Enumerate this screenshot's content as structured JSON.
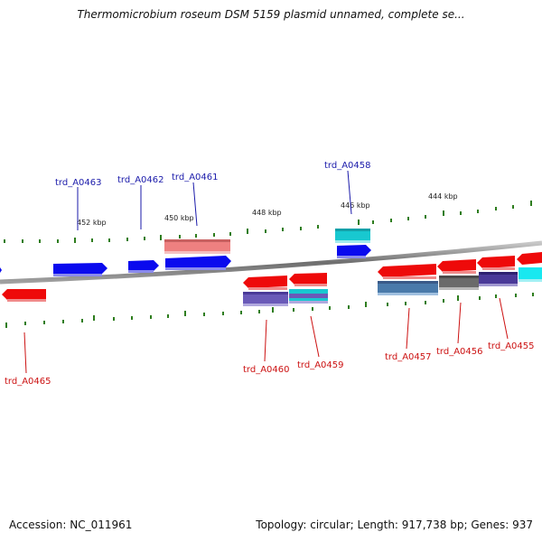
{
  "title": "Thermomicrobium roseum DSM 5159 plasmid unnamed, complete se...",
  "footer": {
    "accession": "Accession: NC_011961",
    "stats": "Topology: circular; Length: 917,738 bp; Genes: 937"
  },
  "colors": {
    "backbone": "#7f7f7f",
    "tick": "#2e7d1e",
    "forward_cds": "#0a0aee",
    "reverse_cds": "#ee0a0a",
    "label_forward": "#1a1aaa",
    "label_reverse": "#cc1111",
    "cog_pink": "#ee8080",
    "cog_cyan": "#18c8d0",
    "cog_purple": "#6a5ab8",
    "cog_steel": "#4a7aaa",
    "cog_gray": "#6a6a6a",
    "cog_indigo": "#4a3a98"
  },
  "scale_labels": [
    "452 kbp",
    "450 kbp",
    "448 kbp",
    "446 kbp",
    "444 kbp"
  ],
  "gene_labels": {
    "top": [
      "trd_A0463",
      "trd_A0462",
      "trd_A0461",
      "trd_A0458"
    ],
    "bottom": [
      "trd_A0465",
      "trd_A0460",
      "trd_A0459",
      "trd_A0457",
      "trd_A0456",
      "trd_A0455"
    ]
  }
}
